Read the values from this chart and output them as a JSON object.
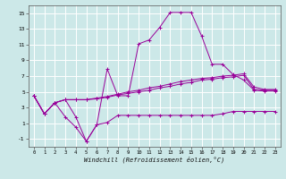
{
  "background_color": "#cce8e8",
  "grid_color": "#ffffff",
  "line_color": "#990099",
  "xlim_min": -0.5,
  "xlim_max": 23.5,
  "ylim_min": -2,
  "ylim_max": 16,
  "xticks": [
    0,
    1,
    2,
    3,
    4,
    5,
    6,
    7,
    8,
    9,
    10,
    11,
    12,
    13,
    14,
    15,
    16,
    17,
    18,
    19,
    20,
    21,
    22,
    23
  ],
  "yticks": [
    -1,
    1,
    3,
    5,
    7,
    9,
    11,
    13,
    15
  ],
  "xlabel": "Windchill (Refroidissement éolien,°C)",
  "s1_y": [
    4.5,
    2.2,
    3.6,
    4.0,
    4.0,
    4.0,
    4.1,
    4.3,
    4.6,
    4.8,
    5.0,
    5.2,
    5.5,
    5.7,
    6.0,
    6.2,
    6.5,
    6.6,
    6.8,
    6.9,
    7.1,
    5.3,
    5.2,
    5.2
  ],
  "s2_y": [
    4.5,
    2.2,
    3.6,
    4.0,
    4.0,
    4.0,
    4.2,
    4.4,
    4.7,
    5.0,
    5.2,
    5.5,
    5.7,
    6.0,
    6.3,
    6.5,
    6.7,
    6.8,
    7.0,
    7.1,
    7.3,
    5.6,
    5.3,
    5.3
  ],
  "s3_y": [
    4.5,
    2.2,
    3.6,
    4.0,
    1.8,
    -1.3,
    0.8,
    7.9,
    4.5,
    4.5,
    11.1,
    11.6,
    13.2,
    15.1,
    15.1,
    15.1,
    12.1,
    8.5,
    8.5,
    7.2,
    6.5,
    5.2,
    5.1,
    5.1
  ],
  "s4_y": [
    4.5,
    2.2,
    3.6,
    1.8,
    0.5,
    -1.3,
    0.8,
    1.1,
    2.0,
    2.0,
    2.0,
    2.0,
    2.0,
    2.0,
    2.0,
    2.0,
    2.0,
    2.0,
    2.2,
    2.5,
    2.5,
    2.5,
    2.5,
    2.5
  ]
}
